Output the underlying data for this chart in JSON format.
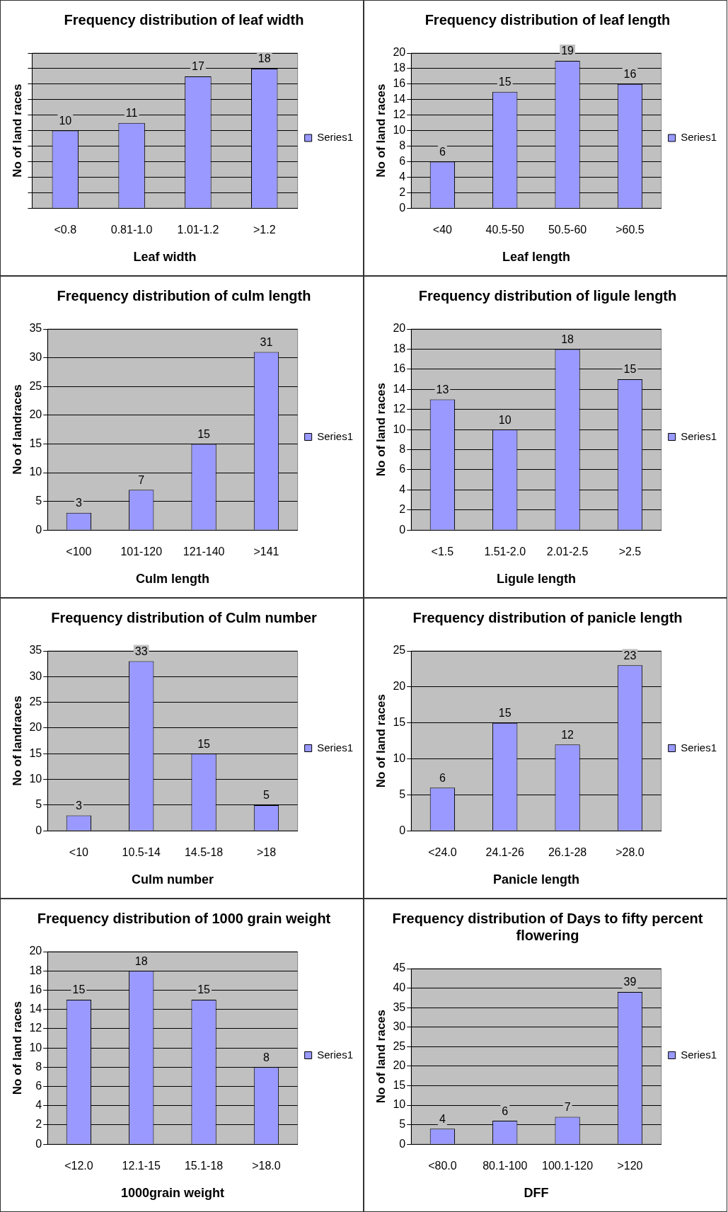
{
  "chart_data": [
    {
      "type": "bar",
      "title": "Frequency distribution of leaf width",
      "xlabel": "Leaf width",
      "ylabel": "No of land races",
      "categories": [
        "<0.8",
        "0.81-1.0",
        "1.01-1.2",
        ">1.2"
      ],
      "series": [
        {
          "name": "Series1",
          "color": "#9999ff",
          "values": [
            10,
            11,
            17,
            18
          ]
        }
      ],
      "ylim": [
        0,
        20
      ],
      "yticks": [
        {
          "value": 0,
          "label": null
        },
        {
          "value": 2,
          "label": null
        },
        {
          "value": 4,
          "label": null
        },
        {
          "value": 6,
          "label": null
        },
        {
          "value": 8,
          "label": null
        },
        {
          "value": 10,
          "label": null
        },
        {
          "value": 12,
          "label": null
        },
        {
          "value": 14,
          "label": null
        },
        {
          "value": 16,
          "label": null
        },
        {
          "value": 18,
          "label": null
        },
        {
          "value": 20,
          "label": null
        }
      ],
      "tick_labels": "x",
      "grid": "y",
      "legend": "right",
      "data_labels": true
    },
    {
      "type": "bar",
      "title": "Frequency distribution of leaf length",
      "xlabel": "Leaf length",
      "ylabel": "No of land races",
      "categories": [
        "<40",
        "40.5-50",
        "50.5-60",
        ">60.5"
      ],
      "series": [
        {
          "name": "Series1",
          "color": "#9999ff",
          "values": [
            6,
            15,
            19,
            16
          ]
        }
      ],
      "ylim": [
        0,
        20
      ],
      "yticks": [
        0,
        2,
        4,
        6,
        8,
        10,
        12,
        14,
        16,
        18,
        20
      ],
      "grid": "y",
      "legend": "right",
      "data_labels": true
    },
    {
      "type": "bar",
      "title": "Frequency distribution of culm length",
      "xlabel": "Culm length",
      "ylabel": "No of landraces",
      "categories": [
        "<100",
        "101-120",
        "121-140",
        ">141"
      ],
      "series": [
        {
          "name": "Series1",
          "color": "#9999ff",
          "values": [
            3,
            7,
            15,
            31
          ]
        }
      ],
      "ylim": [
        0,
        35
      ],
      "yticks": [
        0,
        5,
        10,
        15,
        20,
        25,
        30,
        35
      ],
      "grid": "y",
      "legend": "right",
      "data_labels": true
    },
    {
      "type": "bar",
      "title": "Frequency distribution of ligule length",
      "xlabel": "Ligule length",
      "ylabel": "No of land races",
      "categories": [
        "<1.5",
        "1.51-2.0",
        "2.01-2.5",
        ">2.5"
      ],
      "series": [
        {
          "name": "Series1",
          "color": "#9999ff",
          "values": [
            13,
            10,
            18,
            15
          ]
        }
      ],
      "ylim": [
        0,
        20
      ],
      "yticks": [
        0,
        2,
        4,
        6,
        8,
        10,
        12,
        14,
        16,
        18,
        20
      ],
      "grid": "y",
      "legend": "right",
      "data_labels": true
    },
    {
      "type": "bar",
      "title": "Frequency distribution of Culm number",
      "xlabel": "Culm number",
      "ylabel": "No of landraces",
      "categories": [
        "<10",
        "10.5-14",
        "14.5-18",
        ">18"
      ],
      "series": [
        {
          "name": "Series1",
          "color": "#9999ff",
          "values": [
            3,
            33,
            15,
            5
          ]
        }
      ],
      "ylim": [
        0,
        35
      ],
      "yticks": [
        0,
        5,
        10,
        15,
        20,
        25,
        30,
        35
      ],
      "grid": "y",
      "legend": "right",
      "data_labels": true
    },
    {
      "type": "bar",
      "title": "Frequency distribution of panicle length",
      "xlabel": "Panicle length",
      "ylabel": "No of land races",
      "categories": [
        "<24.0",
        "24.1-26",
        "26.1-28",
        ">28.0"
      ],
      "series": [
        {
          "name": "Series1",
          "color": "#9999ff",
          "values": [
            6,
            15,
            12,
            23
          ]
        }
      ],
      "ylim": [
        0,
        25
      ],
      "yticks": [
        0,
        5,
        10,
        15,
        20,
        25
      ],
      "grid": "y",
      "legend": "right",
      "data_labels": true
    },
    {
      "type": "bar",
      "title": "Frequency distribution of 1000 grain weight",
      "xlabel": "1000grain weight",
      "ylabel": "No of land races",
      "categories": [
        "<12.0",
        "12.1-15",
        "15.1-18",
        ">18.0"
      ],
      "series": [
        {
          "name": "Series1",
          "color": "#9999ff",
          "values": [
            15,
            18,
            15,
            8
          ]
        }
      ],
      "ylim": [
        0,
        20
      ],
      "yticks": [
        0,
        2,
        4,
        6,
        8,
        10,
        12,
        14,
        16,
        18,
        20
      ],
      "grid": "y",
      "legend": "right",
      "data_labels": true
    },
    {
      "type": "bar",
      "title": "Frequency distribution of Days to fifty percent flowering",
      "xlabel": "DFF",
      "ylabel": "No of land races",
      "categories": [
        "<80.0",
        "80.1-100",
        "100.1-120",
        ">120"
      ],
      "series": [
        {
          "name": "Series1",
          "color": "#9999ff",
          "values": [
            4,
            6,
            7,
            39
          ]
        }
      ],
      "ylim": [
        0,
        45
      ],
      "yticks": [
        0,
        5,
        10,
        15,
        20,
        25,
        30,
        35,
        40,
        45
      ],
      "grid": "y",
      "legend": "right",
      "data_labels": true
    }
  ]
}
